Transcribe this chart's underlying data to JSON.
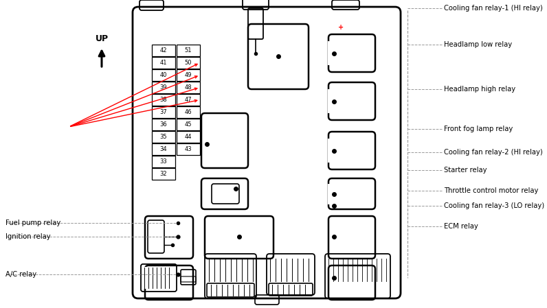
{
  "bg": "#ffffff",
  "dc": "#000000",
  "lc": "#999999",
  "rc": "#ff0000",
  "fuse_labels": [
    [
      "42",
      "51"
    ],
    [
      "41",
      "50"
    ],
    [
      "40",
      "49"
    ],
    [
      "39",
      "48"
    ],
    [
      "38",
      "47"
    ],
    [
      "37",
      "46"
    ],
    [
      "36",
      "45"
    ],
    [
      "35",
      "44"
    ],
    [
      "34",
      "43"
    ],
    [
      "33",
      ""
    ],
    [
      "32",
      ""
    ]
  ],
  "right_labels": [
    [
      "Cooling fan relay-1 (HI relay)",
      15
    ],
    [
      "Headlamp low relay",
      65
    ],
    [
      "Headlamp high relay",
      130
    ],
    [
      "Front fog lamp relay",
      185
    ],
    [
      "Cooling fan relay-2 (HI relay)",
      225
    ],
    [
      "Starter relay",
      248
    ],
    [
      "Throttle control motor relay",
      278
    ],
    [
      "Cooling fan relay-3 (LO relay)",
      298
    ],
    [
      "ECM relay",
      325
    ]
  ],
  "left_labels": [
    [
      "Ignition relay",
      278
    ],
    [
      "Fuel pump relay",
      298
    ],
    [
      "A/C relay",
      325
    ]
  ]
}
